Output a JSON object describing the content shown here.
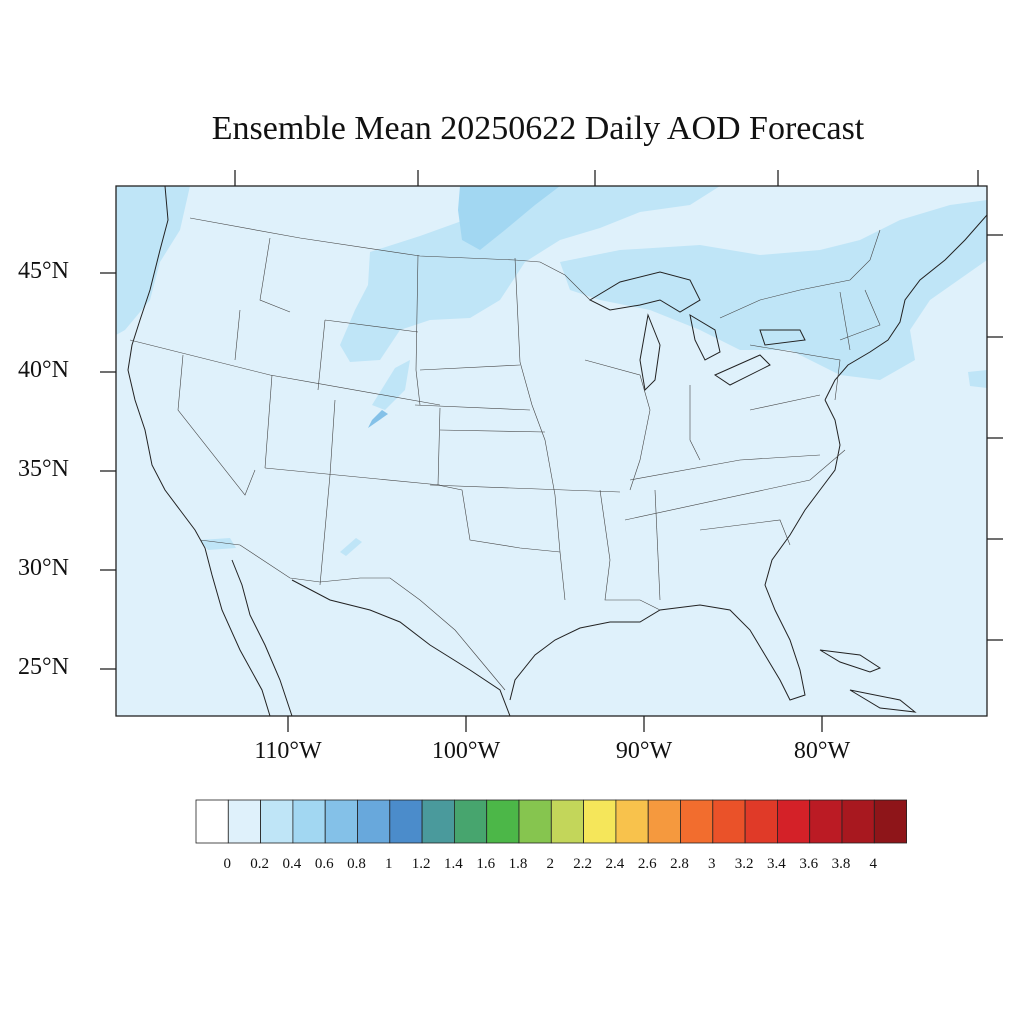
{
  "title": "Ensemble Mean 20250622 Daily AOD Forecast",
  "lat_labels": [
    "45°N",
    "40°N",
    "35°N",
    "30°N",
    "25°N"
  ],
  "lon_labels": [
    "110°W",
    "100°W",
    "90°W",
    "80°W"
  ],
  "colorbar": {
    "labels": [
      "0",
      "0.2",
      "0.4",
      "0.6",
      "0.8",
      "1",
      "1.2",
      "1.4",
      "1.6",
      "1.8",
      "2",
      "2.2",
      "2.4",
      "2.6",
      "2.8",
      "3",
      "3.2",
      "3.4",
      "3.6",
      "3.8",
      "4"
    ],
    "colors": [
      "#ffffff",
      "#dff1fb",
      "#bfe5f7",
      "#a2d7f2",
      "#84c1e8",
      "#68a8dc",
      "#4b8ccb",
      "#4a9a9c",
      "#47a56e",
      "#4cb748",
      "#86c54f",
      "#c3d65a",
      "#f5e65a",
      "#f8c24c",
      "#f5993e",
      "#f26d2e",
      "#ea5229",
      "#e03a28",
      "#d42128",
      "#bb1b24",
      "#a8181f",
      "#8e1519"
    ]
  },
  "colors": {
    "background_aod": "#dff1fb",
    "light_plume": "#bfe5f7",
    "medium_plume": "#a2d7f2",
    "dense_plume": "#84c1e8",
    "border": "#222222"
  }
}
